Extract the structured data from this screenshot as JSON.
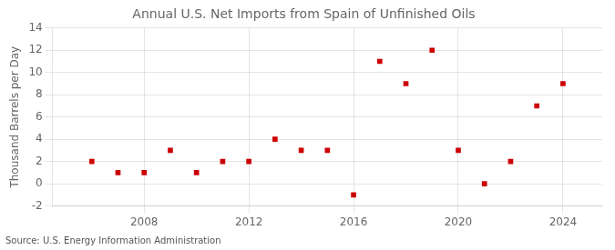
{
  "chart_data": {
    "type": "scatter",
    "title": "Annual U.S. Net Imports from Spain of Unfinished Oils",
    "ylabel": "Thousand Barrels per Day",
    "source": "Source: U.S. Energy Information Administration",
    "x": [
      2006,
      2007,
      2008,
      2009,
      2010,
      2011,
      2012,
      2013,
      2014,
      2015,
      2016,
      2017,
      2018,
      2019,
      2020,
      2021,
      2022,
      2023,
      2024
    ],
    "values": [
      2,
      1,
      1,
      3,
      1,
      2,
      2,
      4,
      3,
      3,
      -1,
      11,
      9,
      12,
      3,
      0,
      2,
      7,
      9
    ],
    "color": "#cc0000",
    "marker": "square",
    "xlim": [
      2004.5,
      2025.5
    ],
    "xticks": [
      2008,
      2012,
      2016,
      2020,
      2024
    ],
    "ylim": [
      -2,
      14
    ],
    "yticks": [
      -2,
      0,
      2,
      4,
      6,
      8,
      10,
      12,
      14
    ],
    "grid": true
  }
}
